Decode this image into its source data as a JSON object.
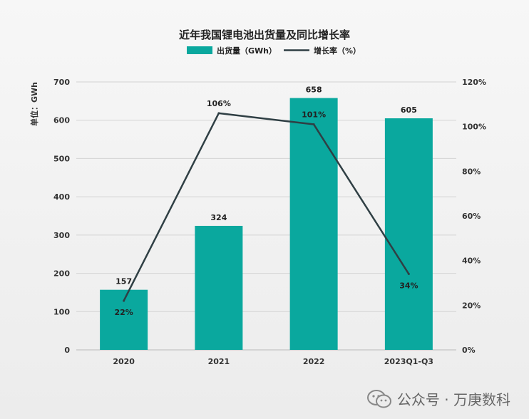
{
  "chart_data": {
    "type": "bar",
    "title": "近年我国锂电池出货量及同比增长率",
    "categories": [
      "2020",
      "2021",
      "2022",
      "2023Q1-Q3"
    ],
    "series": [
      {
        "name": "出货量（GWh）",
        "type": "bar",
        "values": [
          157,
          324,
          658,
          605
        ],
        "labels": [
          "157",
          "324",
          "658",
          "605"
        ]
      },
      {
        "name": "增长率（%）",
        "type": "line",
        "values": [
          22,
          106,
          101,
          34
        ],
        "labels": [
          "22%",
          "106%",
          "101%",
          "34%"
        ]
      }
    ],
    "y_left": {
      "label": "单位：GWh",
      "ylim": [
        0,
        700
      ],
      "ticks": [
        "0",
        "100",
        "200",
        "300",
        "400",
        "500",
        "600",
        "700"
      ]
    },
    "y_right": {
      "ylim": [
        0,
        120
      ],
      "ticks": [
        "0%",
        "20%",
        "40%",
        "60%",
        "80%",
        "100%",
        "120%"
      ]
    },
    "grid": true,
    "legend": "top-center",
    "colors": {
      "bar": "#0aa89e",
      "line": "#2f3f44"
    }
  },
  "watermark": {
    "text": "公众号 · 万庚数科",
    "icon": "wechat-icon"
  }
}
